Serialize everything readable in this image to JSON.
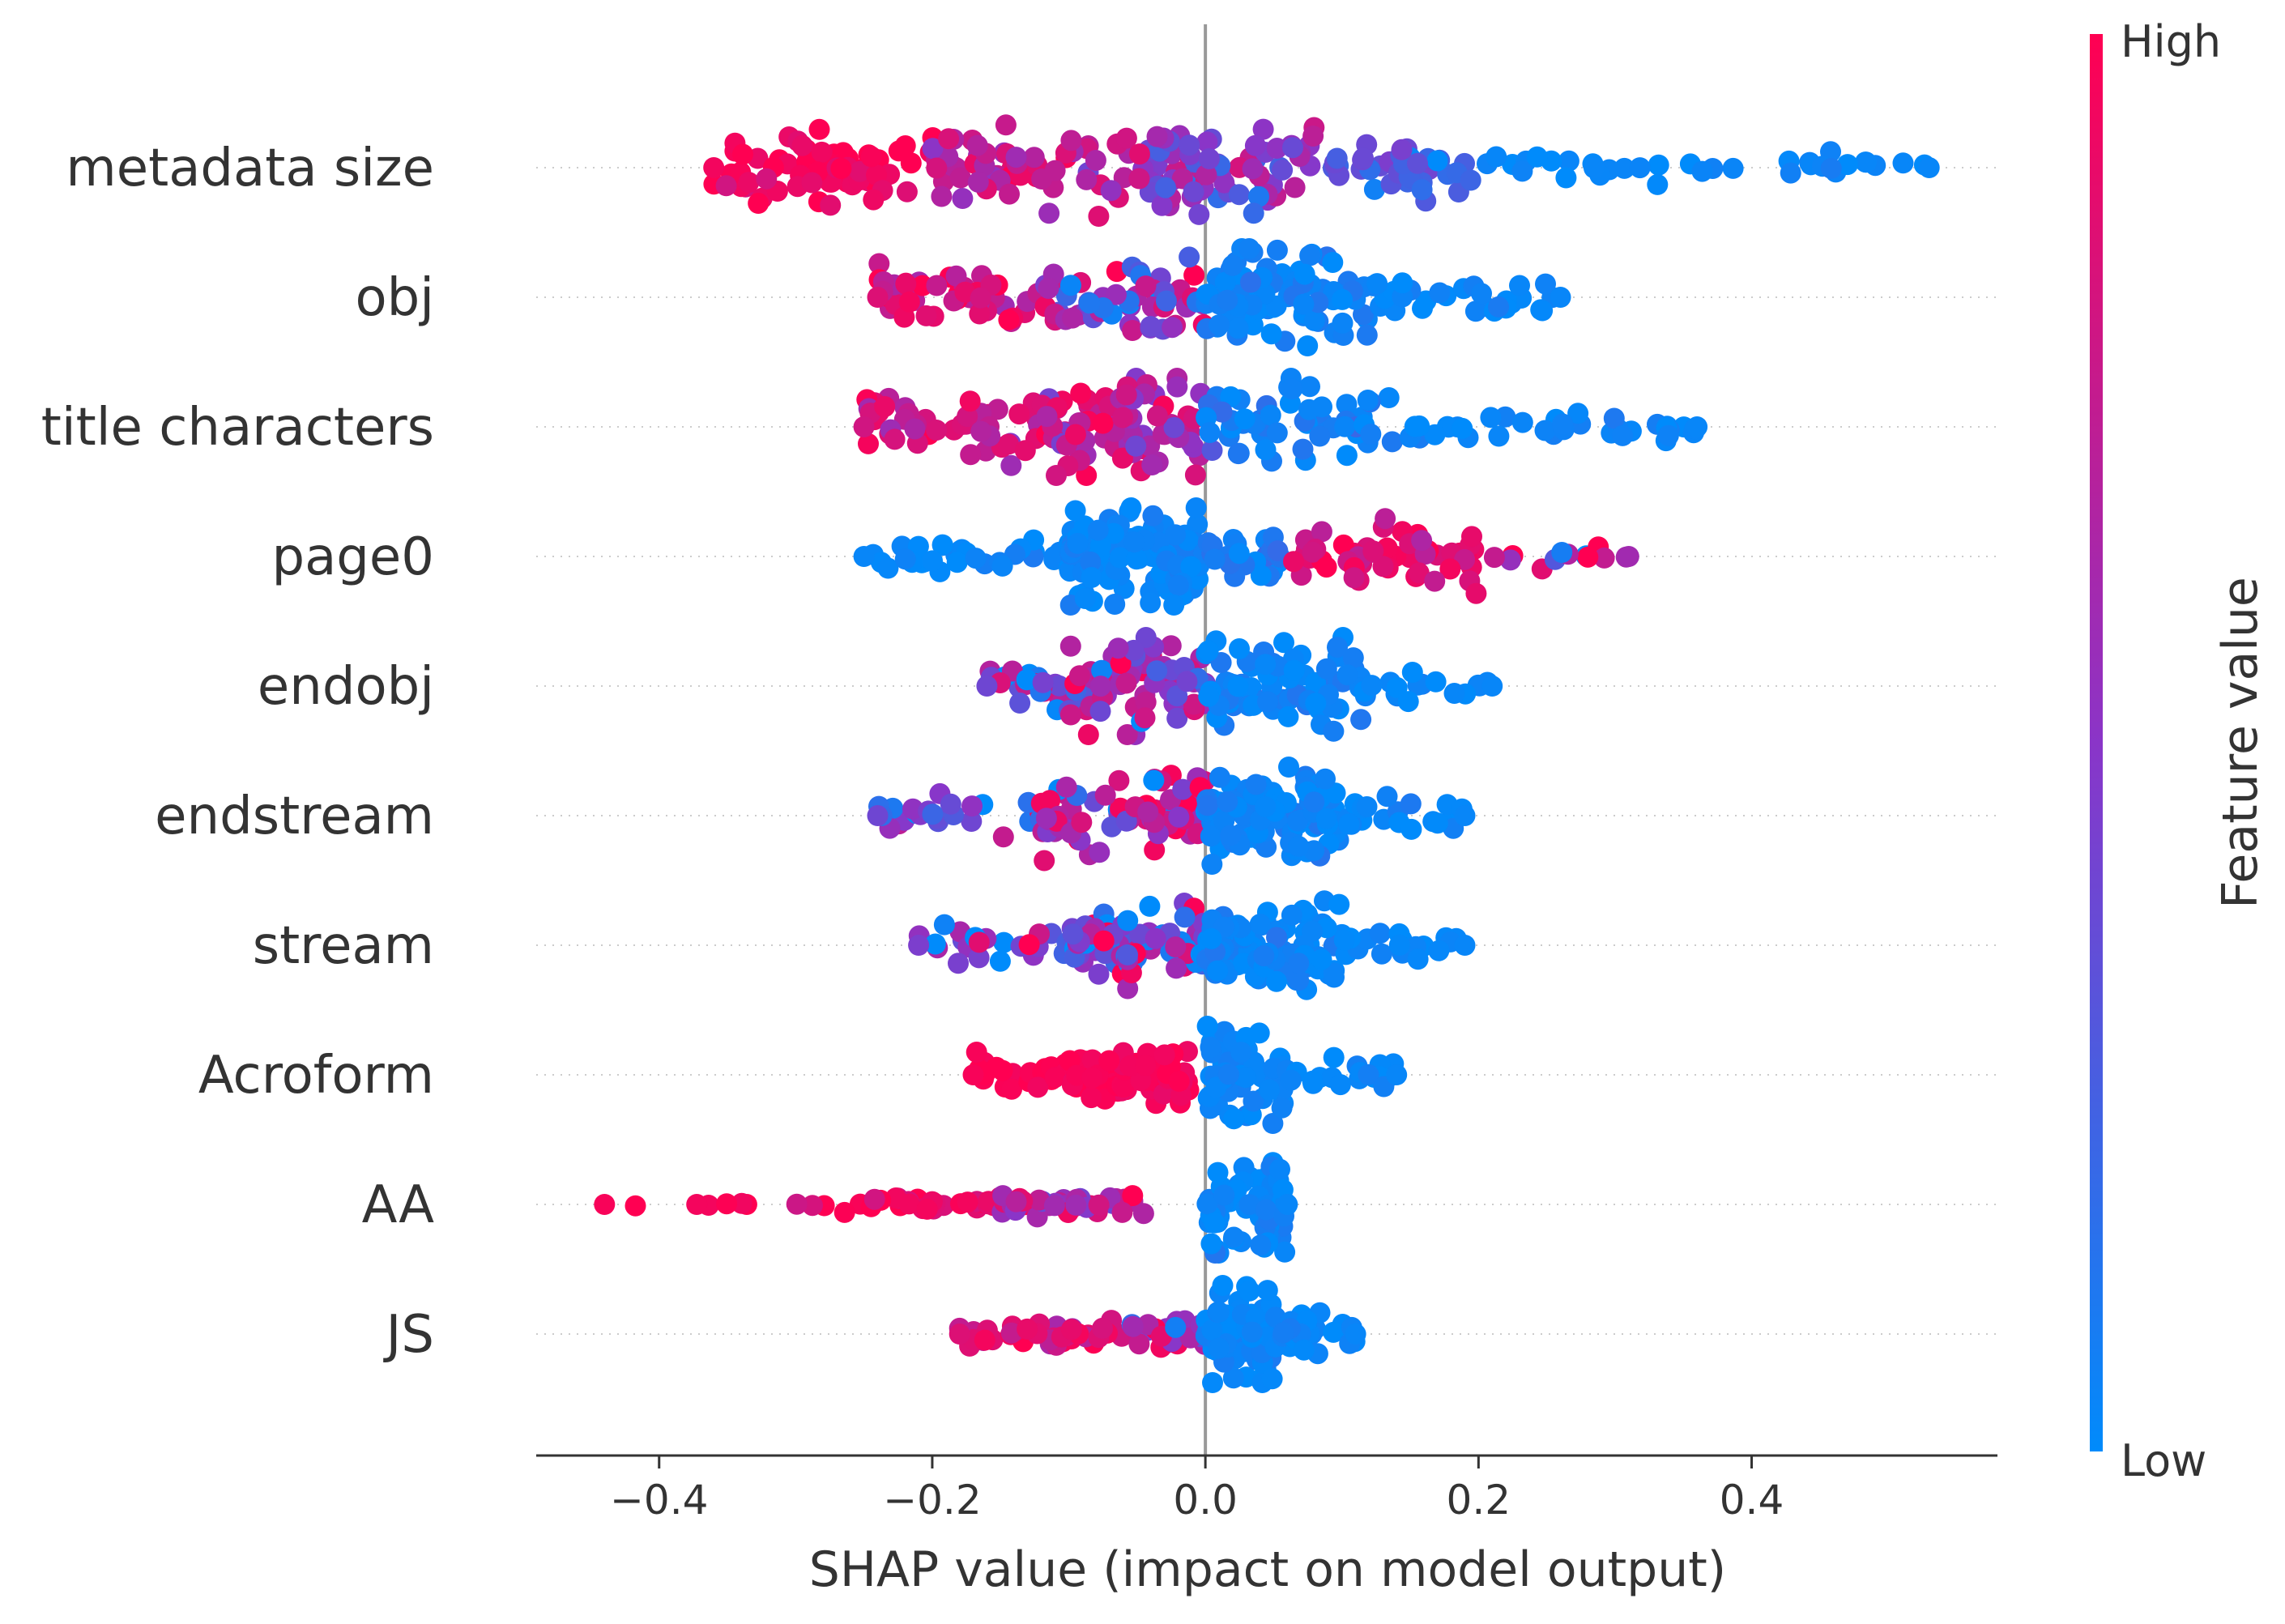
{
  "chart_data": {
    "type": "scatter",
    "subtype": "shap-beeswarm",
    "title": "",
    "xlabel": "SHAP value (impact on model output)",
    "ylabel": "",
    "xlim": [
      -0.49,
      0.58
    ],
    "xticks": [
      {
        "value": -0.4,
        "label": "−0.4"
      },
      {
        "value": -0.2,
        "label": "−0.2"
      },
      {
        "value": 0.0,
        "label": "0.0"
      },
      {
        "value": 0.2,
        "label": "0.2"
      },
      {
        "value": 0.4,
        "label": "0.4"
      }
    ],
    "zero_line": 0.0,
    "grid": false,
    "colorbar": {
      "label": "Feature value",
      "high_label": "High",
      "low_label": "Low",
      "high_color": "#ff0052",
      "mid_color": "#8a35c8",
      "low_color": "#008bfb"
    },
    "features": [
      {
        "name": "metadata size",
        "min": -0.36,
        "max": 0.53,
        "clusters": [
          {
            "range": [
              -0.36,
              -0.2
            ],
            "n": 70,
            "spread": 0.8,
            "fv": 0.95,
            "fv_sd": 0.06
          },
          {
            "range": [
              -0.2,
              -0.05
            ],
            "n": 60,
            "spread": 0.9,
            "fv": 0.72,
            "fv_sd": 0.15
          },
          {
            "range": [
              -0.05,
              0.08
            ],
            "n": 80,
            "spread": 1.0,
            "fv": 0.5,
            "fv_sd": 0.18
          },
          {
            "range": [
              0.08,
              0.2
            ],
            "n": 40,
            "spread": 0.6,
            "fv": 0.25,
            "fv_sd": 0.12
          },
          {
            "range": [
              0.2,
              0.53
            ],
            "n": 35,
            "spread": 0.3,
            "fv": 0.03,
            "fv_sd": 0.03
          }
        ]
      },
      {
        "name": "obj",
        "min": -0.24,
        "max": 0.26,
        "clusters": [
          {
            "range": [
              -0.24,
              -0.12
            ],
            "n": 45,
            "spread": 0.7,
            "fv": 0.85,
            "fv_sd": 0.12
          },
          {
            "range": [
              -0.12,
              0.0
            ],
            "n": 55,
            "spread": 0.8,
            "fv": 0.45,
            "fv_sd": 0.3
          },
          {
            "range": [
              0.0,
              0.12
            ],
            "n": 90,
            "spread": 1.0,
            "fv": 0.05,
            "fv_sd": 0.05
          },
          {
            "range": [
              0.12,
              0.26
            ],
            "n": 30,
            "spread": 0.4,
            "fv": 0.03,
            "fv_sd": 0.03
          }
        ]
      },
      {
        "name": "title characters",
        "min": -0.25,
        "max": 0.36,
        "clusters": [
          {
            "range": [
              -0.25,
              -0.12
            ],
            "n": 45,
            "spread": 0.7,
            "fv": 0.8,
            "fv_sd": 0.12
          },
          {
            "range": [
              -0.12,
              0.0
            ],
            "n": 80,
            "spread": 1.0,
            "fv": 0.72,
            "fv_sd": 0.15
          },
          {
            "range": [
              0.0,
              0.14
            ],
            "n": 60,
            "spread": 0.8,
            "fv": 0.08,
            "fv_sd": 0.06
          },
          {
            "range": [
              0.14,
              0.36
            ],
            "n": 35,
            "spread": 0.3,
            "fv": 0.03,
            "fv_sd": 0.03
          }
        ]
      },
      {
        "name": "page0",
        "min": -0.25,
        "max": 0.31,
        "clusters": [
          {
            "range": [
              -0.25,
              -0.1
            ],
            "n": 30,
            "spread": 0.4,
            "fv": 0.03,
            "fv_sd": 0.03
          },
          {
            "range": [
              -0.1,
              0.0
            ],
            "n": 120,
            "spread": 1.0,
            "fv": 0.03,
            "fv_sd": 0.03
          },
          {
            "range": [
              0.0,
              0.06
            ],
            "n": 25,
            "spread": 0.5,
            "fv": 0.08,
            "fv_sd": 0.06
          },
          {
            "range": [
              0.06,
              0.2
            ],
            "n": 55,
            "spread": 0.7,
            "fv": 0.88,
            "fv_sd": 0.1
          },
          {
            "range": [
              0.2,
              0.31
            ],
            "n": 12,
            "spread": 0.3,
            "fv": 0.6,
            "fv_sd": 0.35
          }
        ]
      },
      {
        "name": "endobj",
        "min": -0.16,
        "max": 0.21,
        "clusters": [
          {
            "range": [
              -0.16,
              -0.1
            ],
            "n": 25,
            "spread": 0.5,
            "fv": 0.4,
            "fv_sd": 0.3
          },
          {
            "range": [
              -0.1,
              0.0
            ],
            "n": 75,
            "spread": 1.0,
            "fv": 0.55,
            "fv_sd": 0.3
          },
          {
            "range": [
              0.0,
              0.12
            ],
            "n": 85,
            "spread": 1.0,
            "fv": 0.04,
            "fv_sd": 0.04
          },
          {
            "range": [
              0.12,
              0.21
            ],
            "n": 15,
            "spread": 0.3,
            "fv": 0.03,
            "fv_sd": 0.03
          }
        ]
      },
      {
        "name": "endstream",
        "min": -0.24,
        "max": 0.19,
        "clusters": [
          {
            "range": [
              -0.24,
              -0.12
            ],
            "n": 25,
            "spread": 0.4,
            "fv": 0.4,
            "fv_sd": 0.35
          },
          {
            "range": [
              -0.12,
              0.0
            ],
            "n": 75,
            "spread": 0.9,
            "fv": 0.6,
            "fv_sd": 0.28
          },
          {
            "range": [
              0.0,
              0.1
            ],
            "n": 110,
            "spread": 1.0,
            "fv": 0.04,
            "fv_sd": 0.04
          },
          {
            "range": [
              0.1,
              0.19
            ],
            "n": 20,
            "spread": 0.4,
            "fv": 0.03,
            "fv_sd": 0.03
          }
        ]
      },
      {
        "name": "stream",
        "min": -0.21,
        "max": 0.19,
        "clusters": [
          {
            "range": [
              -0.21,
              -0.1
            ],
            "n": 22,
            "spread": 0.4,
            "fv": 0.45,
            "fv_sd": 0.35
          },
          {
            "range": [
              -0.1,
              0.0
            ],
            "n": 80,
            "spread": 0.9,
            "fv": 0.45,
            "fv_sd": 0.3
          },
          {
            "range": [
              0.0,
              0.1
            ],
            "n": 95,
            "spread": 1.0,
            "fv": 0.04,
            "fv_sd": 0.04
          },
          {
            "range": [
              0.1,
              0.19
            ],
            "n": 18,
            "spread": 0.4,
            "fv": 0.03,
            "fv_sd": 0.03
          }
        ]
      },
      {
        "name": "Acroform",
        "min": -0.17,
        "max": 0.14,
        "clusters": [
          {
            "range": [
              -0.17,
              -0.1
            ],
            "n": 30,
            "spread": 0.35,
            "fv": 0.97,
            "fv_sd": 0.03
          },
          {
            "range": [
              -0.1,
              -0.01
            ],
            "n": 80,
            "spread": 0.55,
            "fv": 0.97,
            "fv_sd": 0.03
          },
          {
            "range": [
              0.0,
              0.06
            ],
            "n": 60,
            "spread": 1.0,
            "fv": 0.03,
            "fv_sd": 0.03
          },
          {
            "range": [
              0.06,
              0.14
            ],
            "n": 20,
            "spread": 0.4,
            "fv": 0.03,
            "fv_sd": 0.03
          }
        ]
      },
      {
        "name": "AA",
        "min": -0.44,
        "max": 0.06,
        "clusters": [
          {
            "range": [
              -0.44,
              -0.33
            ],
            "n": 6,
            "spread": 0.05,
            "fv": 0.97,
            "fv_sd": 0.03
          },
          {
            "range": [
              -0.3,
              -0.15
            ],
            "n": 30,
            "spread": 0.2,
            "fv": 0.9,
            "fv_sd": 0.08
          },
          {
            "range": [
              -0.15,
              -0.04
            ],
            "n": 40,
            "spread": 0.25,
            "fv": 0.7,
            "fv_sd": 0.15
          },
          {
            "range": [
              0.0,
              0.06
            ],
            "n": 60,
            "spread": 1.0,
            "fv": 0.03,
            "fv_sd": 0.03
          }
        ]
      },
      {
        "name": "JS",
        "min": -0.18,
        "max": 0.11,
        "clusters": [
          {
            "range": [
              -0.18,
              -0.06
            ],
            "n": 40,
            "spread": 0.3,
            "fv": 0.85,
            "fv_sd": 0.12
          },
          {
            "range": [
              -0.06,
              0.0
            ],
            "n": 25,
            "spread": 0.4,
            "fv": 0.55,
            "fv_sd": 0.3
          },
          {
            "range": [
              0.0,
              0.05
            ],
            "n": 70,
            "spread": 1.0,
            "fv": 0.03,
            "fv_sd": 0.03
          },
          {
            "range": [
              0.05,
              0.11
            ],
            "n": 30,
            "spread": 0.4,
            "fv": 0.03,
            "fv_sd": 0.03
          }
        ]
      }
    ]
  }
}
